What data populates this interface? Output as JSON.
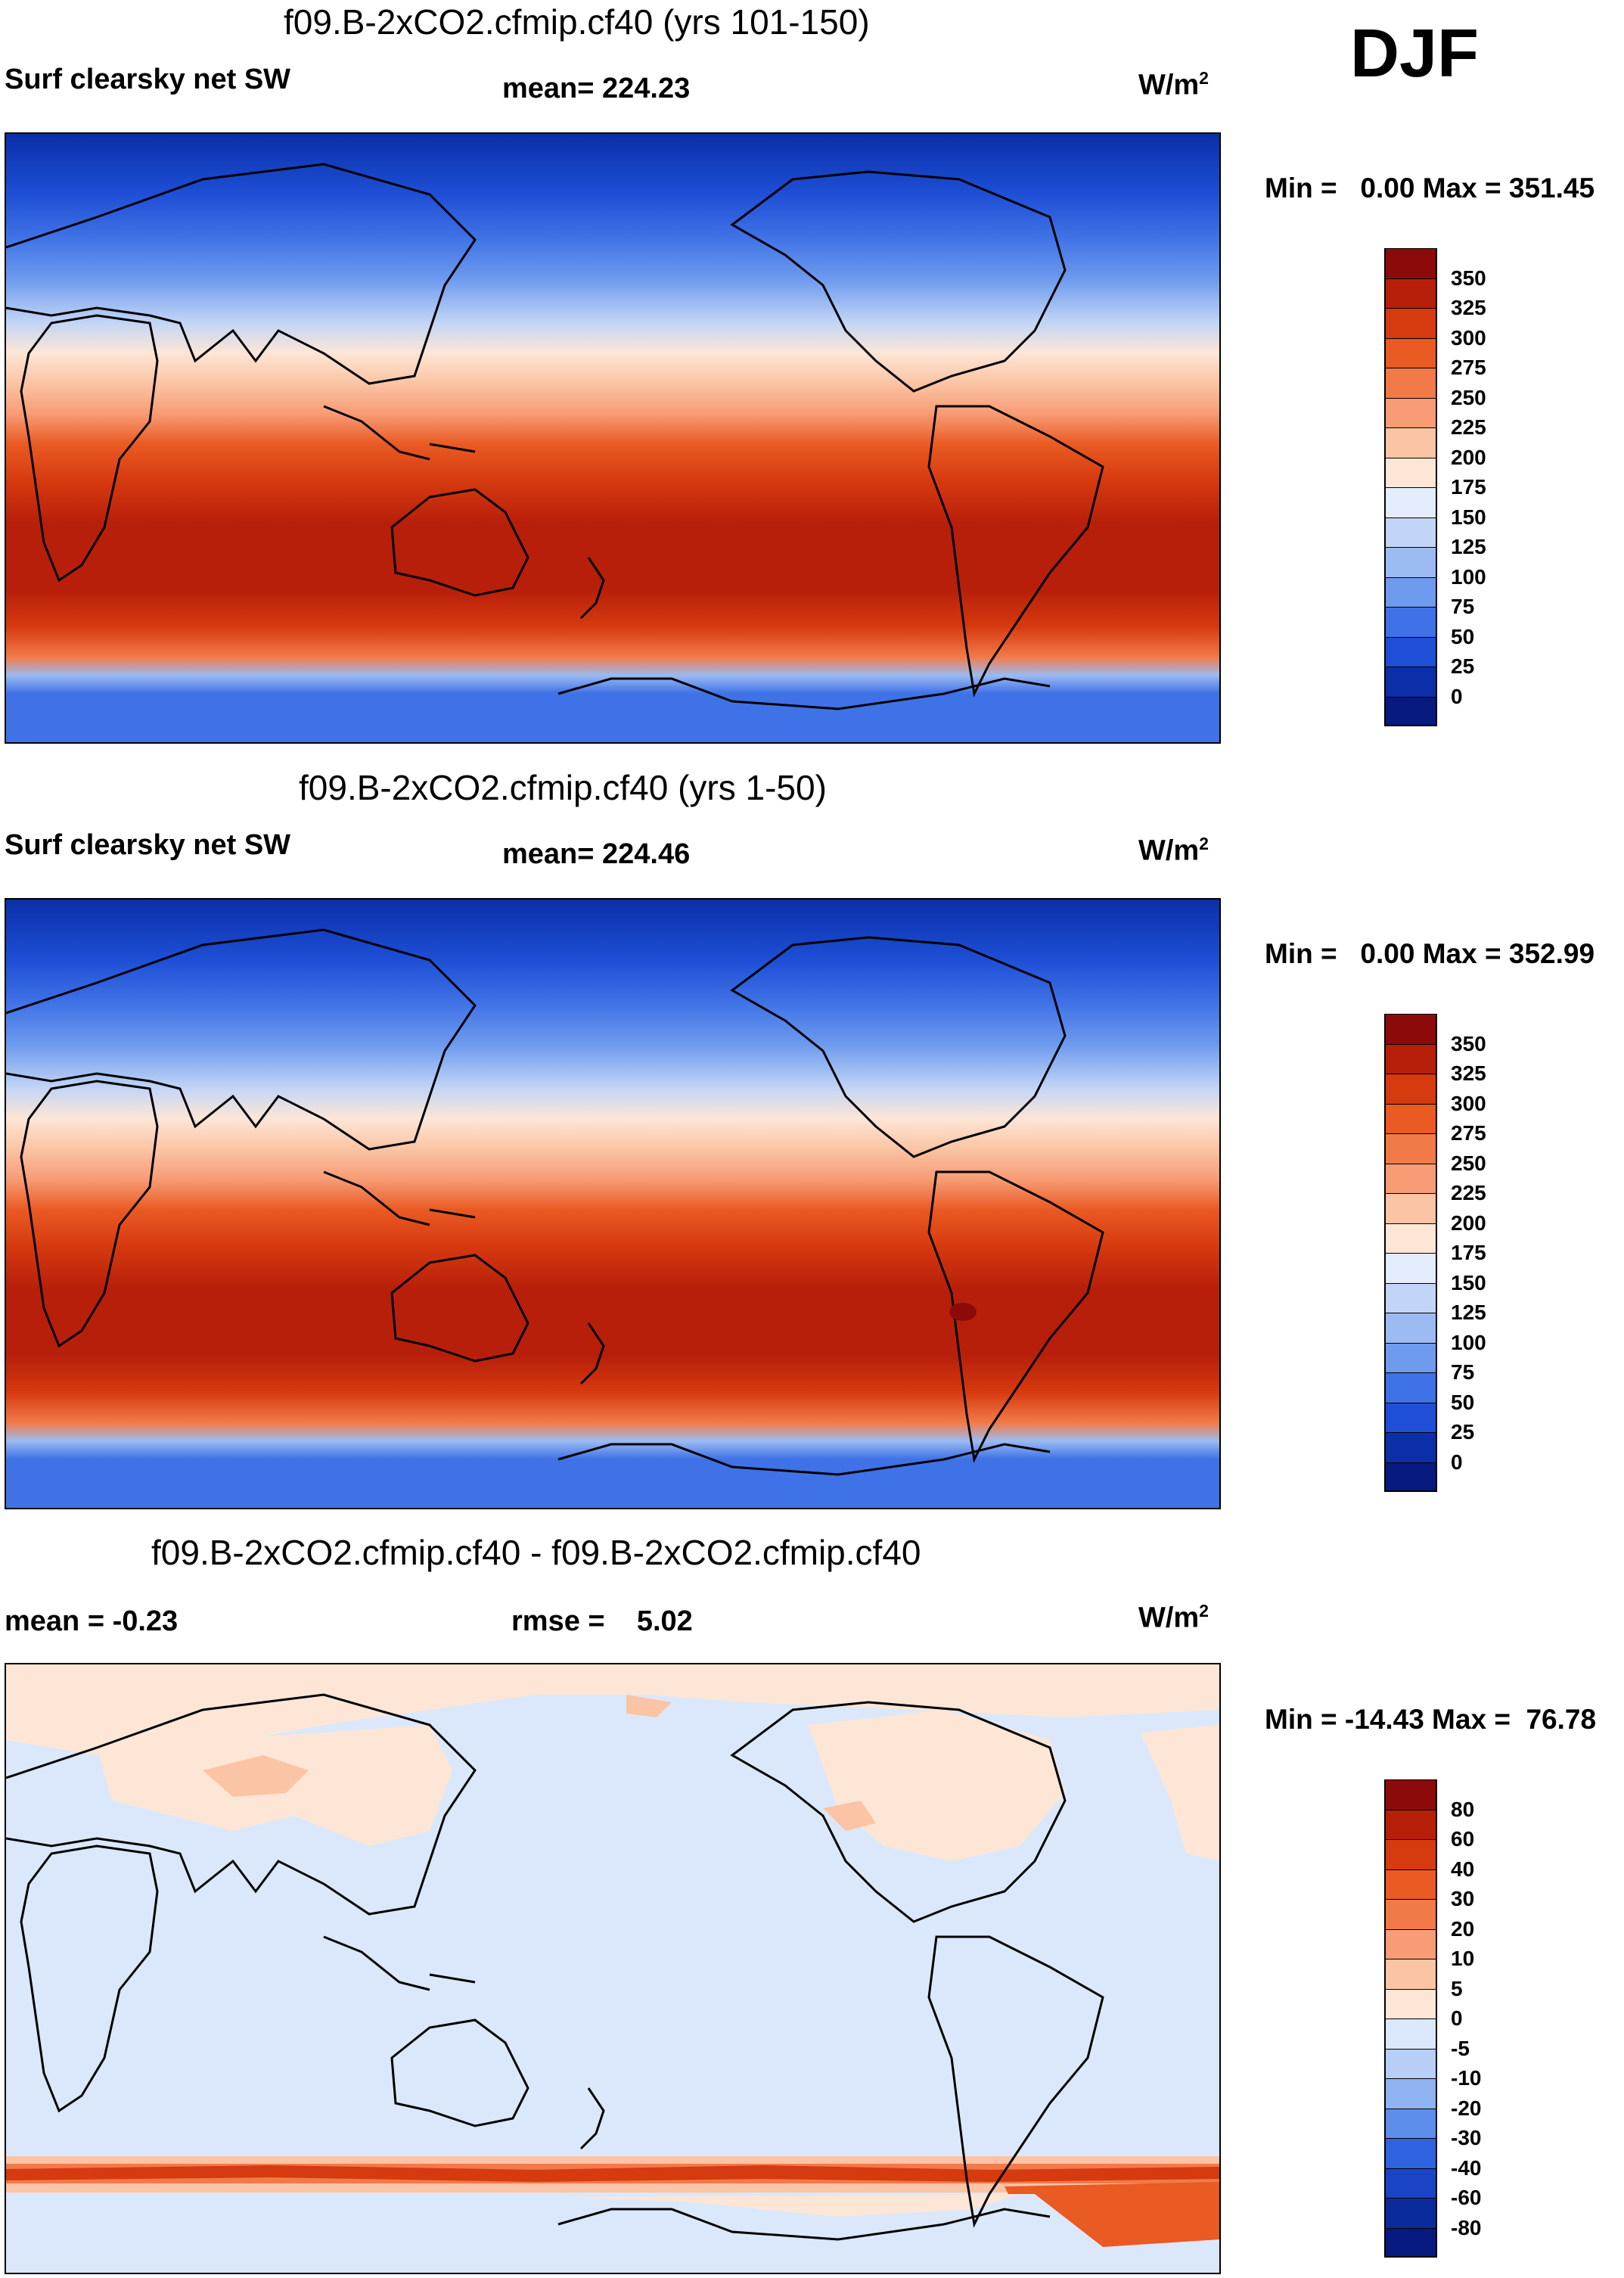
{
  "season": "DJF",
  "panels": [
    {
      "title": "f09.B-2xCO2.cfmip.cf40 (yrs 101-150)",
      "left_label": "Surf clearsky net SW",
      "center_label": "mean= 224.23",
      "units": "W/m",
      "units_sup": "2",
      "minmax": "Min =   0.00 Max = 351.45",
      "colorbar": {
        "labels": [
          "350",
          "325",
          "300",
          "275",
          "250",
          "225",
          "200",
          "175",
          "150",
          "125",
          "100",
          "75",
          "50",
          "25",
          "0"
        ],
        "colors": [
          "#8c0a0a",
          "#b81f0a",
          "#d63a0f",
          "#ea5a23",
          "#f27a48",
          "#f79c75",
          "#fbc4a4",
          "#fde6d6",
          "#e2ecfb",
          "#c2d5f6",
          "#9bbbf2",
          "#6e9bee",
          "#3f72e6",
          "#1e4fd6",
          "#0a2fa8",
          "#061a80"
        ]
      }
    },
    {
      "title": "f09.B-2xCO2.cfmip.cf40 (yrs 1-50)",
      "left_label": "Surf clearsky net SW",
      "center_label": "mean= 224.46",
      "units": "W/m",
      "units_sup": "2",
      "minmax": "Min =   0.00 Max = 352.99",
      "colorbar": {
        "labels": [
          "350",
          "325",
          "300",
          "275",
          "250",
          "225",
          "200",
          "175",
          "150",
          "125",
          "100",
          "75",
          "50",
          "25",
          "0"
        ],
        "colors": [
          "#8c0a0a",
          "#b81f0a",
          "#d63a0f",
          "#ea5a23",
          "#f27a48",
          "#f79c75",
          "#fbc4a4",
          "#fde6d6",
          "#e2ecfb",
          "#c2d5f6",
          "#9bbbf2",
          "#6e9bee",
          "#3f72e6",
          "#1e4fd6",
          "#0a2fa8",
          "#061a80"
        ]
      }
    },
    {
      "title": "f09.B-2xCO2.cfmip.cf40 - f09.B-2xCO2.cfmip.cf40",
      "left_label": "mean =  -0.23",
      "center_label": "rmse =    5.02",
      "units": "W/m",
      "units_sup": "2",
      "minmax": "Min = -14.43 Max =  76.78",
      "colorbar": {
        "labels": [
          "80",
          "60",
          "40",
          "30",
          "20",
          "10",
          "5",
          "0",
          "-5",
          "-10",
          "-20",
          "-30",
          "-40",
          "-60",
          "-80"
        ],
        "colors": [
          "#8c0a0a",
          "#b81f0a",
          "#d63a0f",
          "#ea5a23",
          "#f27a48",
          "#f79c75",
          "#fbc4a4",
          "#fde6d6",
          "#dbe8fb",
          "#b7cff6",
          "#8fb2f0",
          "#5e8eeb",
          "#2f63e0",
          "#1a44c4",
          "#0a2b9c",
          "#061a80"
        ]
      }
    }
  ]
}
